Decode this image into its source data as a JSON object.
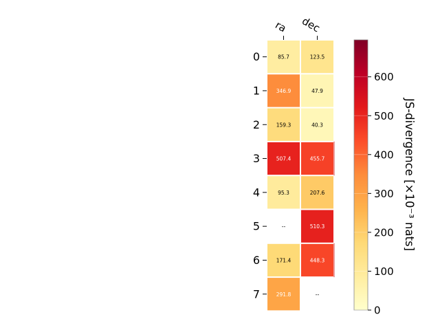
{
  "chart_data": {
    "type": "heatmap",
    "columns": [
      "ra",
      "dec"
    ],
    "rows": [
      "0",
      "1",
      "2",
      "3",
      "4",
      "5",
      "6",
      "7"
    ],
    "values": [
      [
        85.7,
        123.5
      ],
      [
        346.9,
        47.9
      ],
      [
        159.3,
        40.3
      ],
      [
        507.4,
        455.7
      ],
      [
        95.3,
        207.6
      ],
      [
        null,
        510.3
      ],
      [
        171.4,
        448.3
      ],
      [
        291.8,
        null
      ]
    ],
    "missing_label": "--",
    "colorbar": {
      "label": "JS-divergence [×10⁻³ nats]",
      "ticks": [
        0,
        100,
        200,
        300,
        400,
        500,
        600
      ],
      "range": [
        0,
        695
      ],
      "colormap": "YlOrRd",
      "colors": [
        "#ffffcc",
        "#ffeda0",
        "#fed976",
        "#feb24c",
        "#fd8d3c",
        "#fc4e2a",
        "#e31a1c",
        "#bd0026",
        "#800026"
      ]
    }
  }
}
